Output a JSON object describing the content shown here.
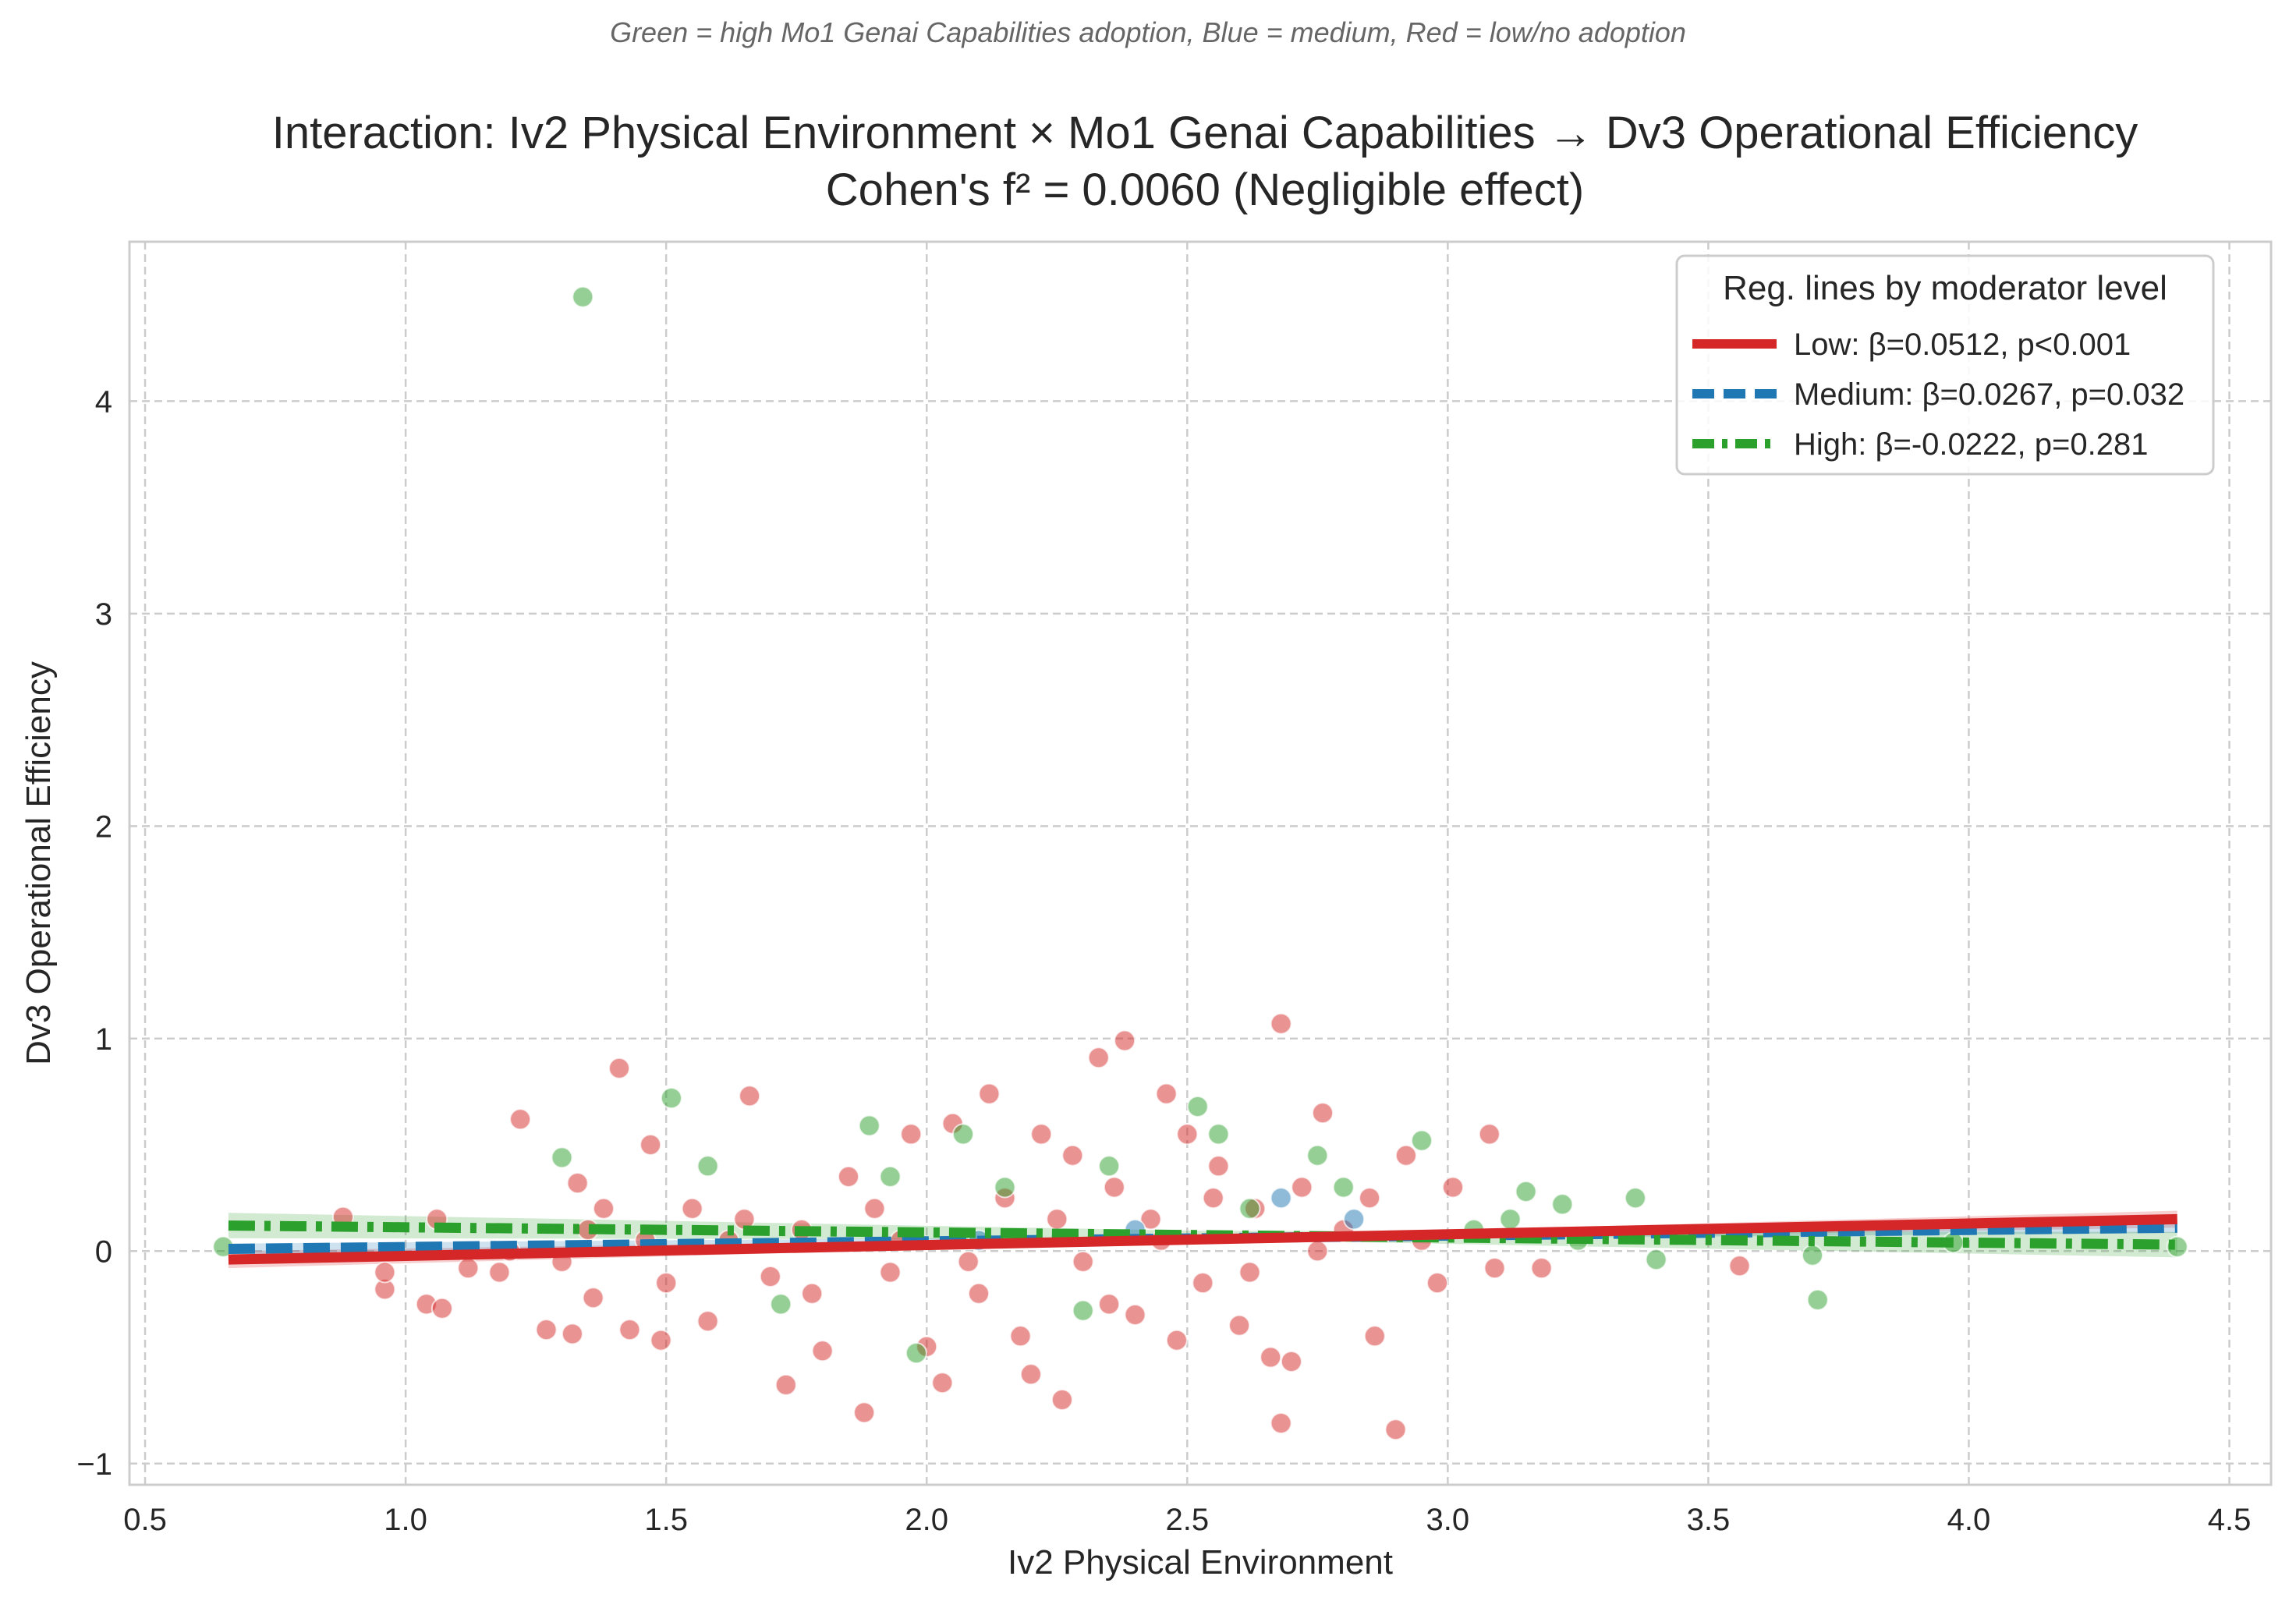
{
  "chart_data": {
    "type": "scatter",
    "note": "Green = high Mo1 Genai Capabilities adoption, Blue = medium, Red = low/no adoption",
    "title": "Interaction: Iv2 Physical Environment × Mo1 Genai Capabilities → Dv3 Operational Efficiency",
    "subtitle": "Cohen's f² = 0.0060 (Negligible effect)",
    "xlabel": "Iv2 Physical Environment",
    "ylabel": "Dv3 Operational Efficiency",
    "xlim": [
      0.47,
      4.58
    ],
    "ylim": [
      -1.1,
      4.75
    ],
    "xticks": [
      0.5,
      1.0,
      1.5,
      2.0,
      2.5,
      3.0,
      3.5,
      4.0,
      4.5
    ],
    "xtick_labels": [
      "0.5",
      "1.0",
      "1.5",
      "2.0",
      "2.5",
      "3.0",
      "3.5",
      "4.0",
      "4.5"
    ],
    "yticks": [
      -1,
      0,
      1,
      2,
      3,
      4
    ],
    "ytick_labels": [
      "−1",
      "0",
      "1",
      "2",
      "3",
      "4"
    ],
    "grid": true,
    "legend_placement": "top-right",
    "legend_title": "Reg. lines by moderator level",
    "series": [
      {
        "name": "Low: β=0.0512, p<0.001",
        "level": "low",
        "color": "#d62728",
        "line_style": "solid",
        "line": {
          "x": [
            0.66,
            4.4
          ],
          "y": [
            -0.04,
            0.15
          ]
        },
        "ci_halfwidth": [
          0.04,
          0.012,
          0.04
        ],
        "points": [
          [
            0.88,
            0.16
          ],
          [
            0.96,
            -0.18
          ],
          [
            0.96,
            -0.1
          ],
          [
            1.04,
            -0.25
          ],
          [
            1.07,
            -0.27
          ],
          [
            1.06,
            0.15
          ],
          [
            1.12,
            -0.08
          ],
          [
            1.18,
            -0.1
          ],
          [
            1.22,
            0.62
          ],
          [
            1.27,
            -0.37
          ],
          [
            1.32,
            -0.39
          ],
          [
            1.3,
            -0.05
          ],
          [
            1.33,
            0.32
          ],
          [
            1.36,
            -0.22
          ],
          [
            1.38,
            0.2
          ],
          [
            1.41,
            0.86
          ],
          [
            1.43,
            -0.37
          ],
          [
            1.46,
            0.05
          ],
          [
            1.47,
            0.5
          ],
          [
            1.49,
            -0.42
          ],
          [
            1.55,
            0.2
          ],
          [
            1.58,
            -0.33
          ],
          [
            1.62,
            0.05
          ],
          [
            1.66,
            0.73
          ],
          [
            1.7,
            -0.12
          ],
          [
            1.73,
            -0.63
          ],
          [
            1.76,
            0.1
          ],
          [
            1.8,
            -0.47
          ],
          [
            1.85,
            0.35
          ],
          [
            1.88,
            -0.76
          ],
          [
            1.9,
            0.2
          ],
          [
            1.93,
            -0.1
          ],
          [
            1.97,
            0.55
          ],
          [
            2.0,
            -0.45
          ],
          [
            2.03,
            -0.62
          ],
          [
            2.05,
            0.6
          ],
          [
            2.08,
            -0.05
          ],
          [
            2.12,
            0.74
          ],
          [
            2.15,
            0.25
          ],
          [
            2.18,
            -0.4
          ],
          [
            2.2,
            -0.58
          ],
          [
            2.22,
            0.55
          ],
          [
            2.26,
            -0.7
          ],
          [
            2.28,
            0.45
          ],
          [
            2.3,
            -0.05
          ],
          [
            2.33,
            0.91
          ],
          [
            2.36,
            0.3
          ],
          [
            2.38,
            0.99
          ],
          [
            2.4,
            -0.3
          ],
          [
            2.43,
            0.15
          ],
          [
            2.46,
            0.74
          ],
          [
            2.48,
            -0.42
          ],
          [
            2.5,
            0.55
          ],
          [
            2.53,
            -0.15
          ],
          [
            2.56,
            0.4
          ],
          [
            2.6,
            -0.35
          ],
          [
            2.63,
            0.2
          ],
          [
            2.66,
            -0.5
          ],
          [
            2.68,
            1.07
          ],
          [
            2.68,
            -0.81
          ],
          [
            2.7,
            -0.52
          ],
          [
            2.72,
            0.3
          ],
          [
            2.76,
            0.65
          ],
          [
            2.8,
            0.1
          ],
          [
            2.86,
            -0.4
          ],
          [
            2.9,
            -0.84
          ],
          [
            2.92,
            0.45
          ],
          [
            2.95,
            0.05
          ],
          [
            3.01,
            0.3
          ],
          [
            3.08,
            0.55
          ],
          [
            3.09,
            -0.08
          ],
          [
            3.18,
            -0.08
          ],
          [
            3.56,
            -0.07
          ],
          [
            1.2,
            0.0
          ],
          [
            1.35,
            0.1
          ],
          [
            1.5,
            -0.15
          ],
          [
            1.65,
            0.15
          ],
          [
            1.78,
            -0.2
          ],
          [
            1.95,
            0.05
          ],
          [
            2.1,
            -0.2
          ],
          [
            2.25,
            0.15
          ],
          [
            2.35,
            -0.25
          ],
          [
            2.45,
            0.05
          ],
          [
            2.55,
            0.25
          ],
          [
            2.62,
            -0.1
          ],
          [
            2.75,
            0.0
          ],
          [
            2.85,
            0.25
          ],
          [
            2.98,
            -0.15
          ]
        ]
      },
      {
        "name": "Medium: β=0.0267, p=0.032",
        "level": "medium",
        "color": "#1f77b4",
        "line_style": "dashed",
        "line": {
          "x": [
            0.66,
            4.4
          ],
          "y": [
            0.01,
            0.11
          ]
        },
        "ci_halfwidth": [
          0.025,
          0.01,
          0.025
        ],
        "points": [
          [
            2.68,
            0.25
          ],
          [
            2.82,
            0.15
          ],
          [
            2.4,
            0.1
          ],
          [
            2.1,
            0.05
          ]
        ]
      },
      {
        "name": "High: β=-0.0222, p=0.281",
        "level": "high",
        "color": "#2ca02c",
        "line_style": "dashdot",
        "line": {
          "x": [
            0.66,
            4.4
          ],
          "y": [
            0.12,
            0.03
          ]
        },
        "ci_halfwidth": [
          0.06,
          0.02,
          0.06
        ],
        "points": [
          [
            0.65,
            0.02
          ],
          [
            1.34,
            4.49
          ],
          [
            1.3,
            0.44
          ],
          [
            1.51,
            0.72
          ],
          [
            1.58,
            0.4
          ],
          [
            1.89,
            0.59
          ],
          [
            1.93,
            0.35
          ],
          [
            1.98,
            -0.48
          ],
          [
            2.07,
            0.55
          ],
          [
            2.15,
            0.3
          ],
          [
            2.35,
            0.4
          ],
          [
            2.52,
            0.68
          ],
          [
            2.56,
            0.55
          ],
          [
            2.62,
            0.2
          ],
          [
            2.75,
            0.45
          ],
          [
            2.95,
            0.52
          ],
          [
            3.12,
            0.15
          ],
          [
            3.15,
            0.28
          ],
          [
            3.22,
            0.22
          ],
          [
            3.25,
            0.05
          ],
          [
            3.36,
            0.25
          ],
          [
            3.4,
            -0.04
          ],
          [
            3.7,
            -0.02
          ],
          [
            3.71,
            -0.23
          ],
          [
            3.97,
            0.04
          ],
          [
            4.4,
            0.02
          ],
          [
            1.72,
            -0.25
          ],
          [
            2.3,
            -0.28
          ],
          [
            2.8,
            0.3
          ],
          [
            3.05,
            0.1
          ]
        ]
      }
    ]
  }
}
